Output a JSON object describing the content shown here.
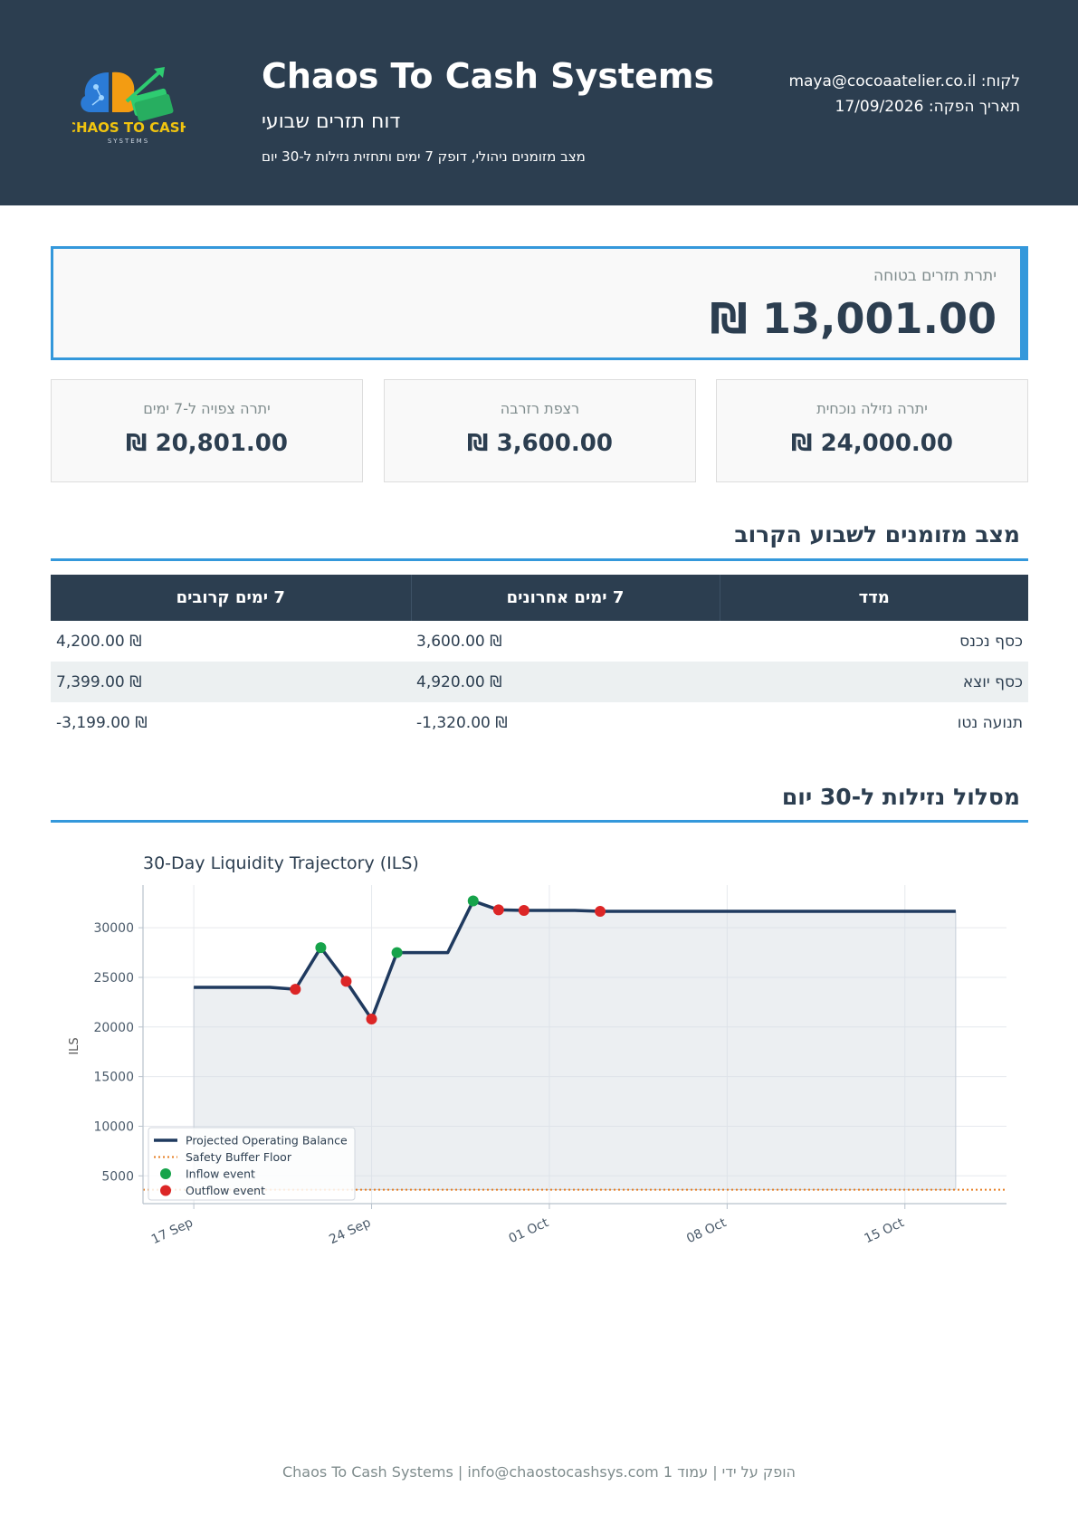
{
  "header": {
    "logo_text": "CHAOS TO CASH",
    "logo_subtext": "SYSTEMS",
    "title": "Chaos To Cash Systems",
    "subtitle": "דוח תזרים שבועי",
    "description": "מצב מזומנים ניהולי, דופק 7 ימים ותחזית נזילות ל-30 יום",
    "customer_label": "לקוח:",
    "customer_email": "maya@cocoaatelier.co.il",
    "date_label": "תאריך הפקה:",
    "date_value": "17/09/2026"
  },
  "safe_balance": {
    "label": "יתרת תזרים בטוחה",
    "value": "13,001.00 ₪"
  },
  "kpis": [
    {
      "label": "יתרה נזילה נוכחית",
      "value": "24,000.00 ₪"
    },
    {
      "label": "רצפת רזרבה",
      "value": "3,600.00 ₪"
    },
    {
      "label": "יתרה צפויה ל-7 ימים",
      "value": "20,801.00 ₪"
    }
  ],
  "weekly": {
    "title": "מצב מזומנים לשבוע הקרוב",
    "headers": [
      "מדד",
      "7 ימים אחרונים",
      "7 ימים קרובים"
    ],
    "rows": [
      {
        "metric": "כסף נכנס",
        "last7": "3,600.00 ₪",
        "next7": "4,200.00 ₪"
      },
      {
        "metric": "כסף יוצא",
        "last7": "4,920.00 ₪",
        "next7": "7,399.00 ₪"
      },
      {
        "metric": "תנועה נטו",
        "last7": "-1,320.00 ₪",
        "next7": "-3,199.00 ₪"
      }
    ]
  },
  "trajectory_section": {
    "title": "מסלול נזילות ל-30 יום"
  },
  "chart_data": {
    "type": "line",
    "title": "30-Day Liquidity Trajectory (ILS)",
    "xlabel": "",
    "ylabel": "ILS",
    "x_range": [
      "2026-09-15",
      "2026-10-19"
    ],
    "y_range": [
      2200,
      34300
    ],
    "x_ticks": [
      {
        "date": "2026-09-17",
        "label": "17 Sep"
      },
      {
        "date": "2026-09-24",
        "label": "24 Sep"
      },
      {
        "date": "2026-10-01",
        "label": "01 Oct"
      },
      {
        "date": "2026-10-08",
        "label": "08 Oct"
      },
      {
        "date": "2026-10-15",
        "label": "15 Oct"
      }
    ],
    "y_ticks": [
      5000,
      10000,
      15000,
      20000,
      25000,
      30000
    ],
    "grid": true,
    "legend_position": "bottom-left",
    "series": [
      {
        "name": "Projected Operating Balance",
        "color": "#1f3a5f",
        "points": [
          [
            "2026-09-17",
            24000
          ],
          [
            "2026-09-20",
            24000
          ],
          [
            "2026-09-21",
            23800
          ],
          [
            "2026-09-22",
            28000
          ],
          [
            "2026-09-23",
            24600
          ],
          [
            "2026-09-24",
            20800
          ],
          [
            "2026-09-25",
            27500
          ],
          [
            "2026-09-27",
            27500
          ],
          [
            "2026-09-28",
            32700
          ],
          [
            "2026-09-29",
            31800
          ],
          [
            "2026-09-30",
            31750
          ],
          [
            "2026-10-02",
            31750
          ],
          [
            "2026-10-03",
            31650
          ],
          [
            "2026-10-17",
            31650
          ]
        ]
      },
      {
        "name": "Safety Buffer Floor",
        "color": "#e67e22",
        "value": 3600
      },
      {
        "name": "Inflow event",
        "color": "#16a34a",
        "points": [
          [
            "2026-09-22",
            28000
          ],
          [
            "2026-09-25",
            27500
          ],
          [
            "2026-09-28",
            32700
          ]
        ]
      },
      {
        "name": "Outflow event",
        "color": "#dc2626",
        "points": [
          [
            "2026-09-21",
            23800
          ],
          [
            "2026-09-23",
            24600
          ],
          [
            "2026-09-24",
            20800
          ],
          [
            "2026-09-29",
            31800
          ],
          [
            "2026-09-30",
            31750
          ],
          [
            "2026-10-03",
            31650
          ]
        ]
      }
    ]
  },
  "footer": {
    "left_text": "Chaos To Cash Systems | info@chaostocashsys.com",
    "right_text": "הופק על ידי | עמוד 1"
  }
}
